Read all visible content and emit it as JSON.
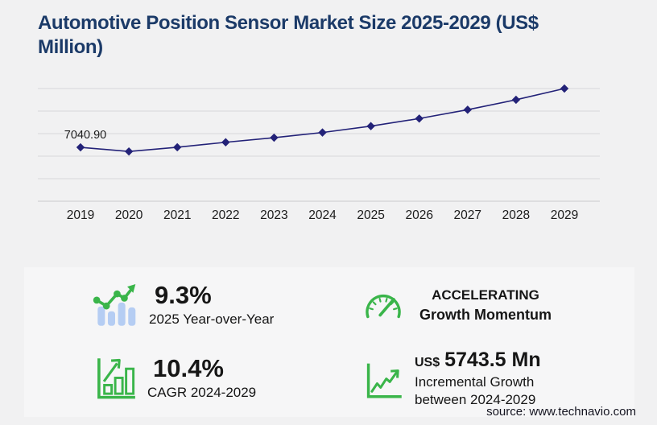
{
  "page": {
    "title": "Automotive Position Sensor Market Size 2025-2029 (US$ Million)",
    "source": "source: www.technavio.com"
  },
  "chart_data": {
    "type": "line",
    "title": "Automotive Position Sensor Market Size 2025-2029 (US$ Million)",
    "x": [
      "2019",
      "2020",
      "2021",
      "2022",
      "2023",
      "2024",
      "2025",
      "2026",
      "2027",
      "2028",
      "2029"
    ],
    "values": [
      7040.9,
      6500,
      7050,
      7700,
      8300,
      8974.2,
      9808.8,
      10800,
      11950,
      13250,
      14717.7
    ],
    "xlabel": "",
    "ylabel": "",
    "ylim": [
      0,
      14717.7
    ],
    "grid": true,
    "gridline_count": 6,
    "legend_position": "none",
    "marker": "diamond",
    "line_color": "#232278",
    "point_label": {
      "x": "2019",
      "text": "7040.90"
    }
  },
  "stats": [
    {
      "icon": "growth-bars-icon",
      "value": "9.3%",
      "label": "2025 Year-over-Year"
    },
    {
      "icon": "gauge-icon",
      "value": "ACCELERATING",
      "label": "Growth Momentum"
    },
    {
      "icon": "bar-chart-frame-icon",
      "value": "10.4%",
      "label": "CAGR 2024-2029"
    },
    {
      "icon": "incremental-growth-icon",
      "value_prefix": "US$",
      "value": "5743.5 Mn",
      "label": "Incremental Growth between 2024-2029"
    }
  ],
  "colors": {
    "accent_green": "#3ab54a",
    "bar_blue": "#b5cdf3",
    "line_navy": "#232278",
    "title_navy": "#1b3a68",
    "gridline": "#d8d8da"
  }
}
